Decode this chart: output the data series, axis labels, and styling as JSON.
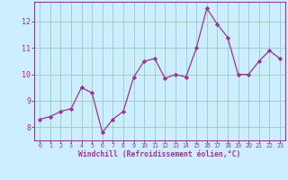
{
  "x": [
    0,
    1,
    2,
    3,
    4,
    5,
    6,
    7,
    8,
    9,
    10,
    11,
    12,
    13,
    14,
    15,
    16,
    17,
    18,
    19,
    20,
    21,
    22,
    23
  ],
  "y": [
    8.3,
    8.4,
    8.6,
    8.7,
    9.5,
    9.3,
    7.8,
    8.3,
    8.6,
    9.9,
    10.5,
    10.6,
    9.85,
    10.0,
    9.9,
    11.0,
    12.5,
    11.9,
    11.4,
    10.0,
    10.0,
    10.5,
    10.9,
    10.6
  ],
  "line_color": "#993399",
  "marker": "D",
  "marker_size": 2.2,
  "bg_color": "#cceeff",
  "grid_color": "#99ccbb",
  "xlabel": "Windchill (Refroidissement éolien,°C)",
  "xlabel_color": "#993399",
  "tick_color": "#993399",
  "spine_color": "#993399",
  "ylim": [
    7.5,
    12.75
  ],
  "xlim": [
    -0.5,
    23.5
  ],
  "yticks": [
    8,
    9,
    10,
    11,
    12
  ],
  "xticks": [
    0,
    1,
    2,
    3,
    4,
    5,
    6,
    7,
    8,
    9,
    10,
    11,
    12,
    13,
    14,
    15,
    16,
    17,
    18,
    19,
    20,
    21,
    22,
    23
  ]
}
